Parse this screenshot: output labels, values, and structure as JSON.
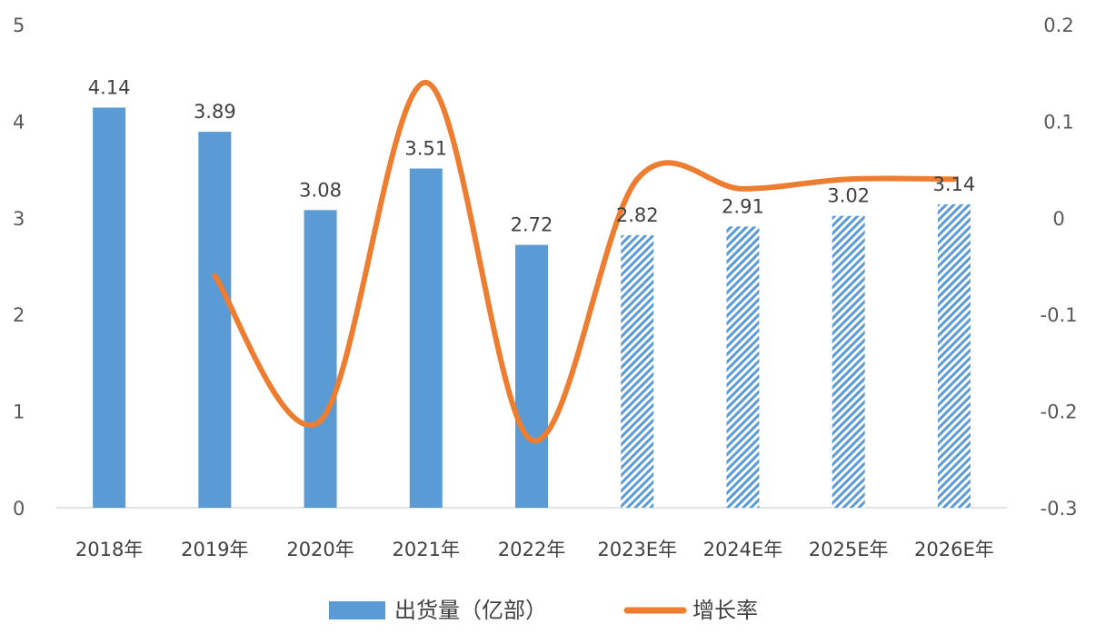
{
  "chart_data": {
    "type": "bar",
    "categories": [
      "2018年",
      "2019年",
      "2020年",
      "2021年",
      "2022年",
      "2023E年",
      "2024E年",
      "2025E年",
      "2026E年"
    ],
    "series": [
      {
        "name": "出货量（亿部）",
        "type": "bar",
        "axis": "left",
        "values": [
          4.14,
          3.89,
          3.08,
          3.51,
          2.72,
          2.82,
          2.91,
          3.02,
          3.14
        ],
        "labels": [
          "4.14",
          "3.89",
          "3.08",
          "3.51",
          "2.72",
          "2.82",
          "2.91",
          "3.02",
          "3.14"
        ],
        "estimated": [
          false,
          false,
          false,
          false,
          false,
          true,
          true,
          true,
          true
        ],
        "color": "#5b9bd5"
      },
      {
        "name": "增长率",
        "type": "line",
        "axis": "right",
        "smooth": true,
        "values": [
          null,
          -0.06,
          -0.21,
          0.14,
          -0.23,
          0.04,
          0.03,
          0.04,
          0.04
        ],
        "color": "#ed7d31"
      }
    ],
    "y_left": {
      "min": 0,
      "max": 5,
      "ticks": [
        "0",
        "1",
        "2",
        "3",
        "4",
        "5"
      ]
    },
    "y_right": {
      "min": -0.3,
      "max": 0.2,
      "ticks": [
        "-0.3",
        "-0.2",
        "-0.1",
        "0",
        "0.1",
        "0.2"
      ]
    },
    "grid": false,
    "legend_position": "bottom"
  },
  "colors": {
    "bar": "#5b9bd5",
    "line": "#ed7d31",
    "axis": "#d9d9d9"
  }
}
